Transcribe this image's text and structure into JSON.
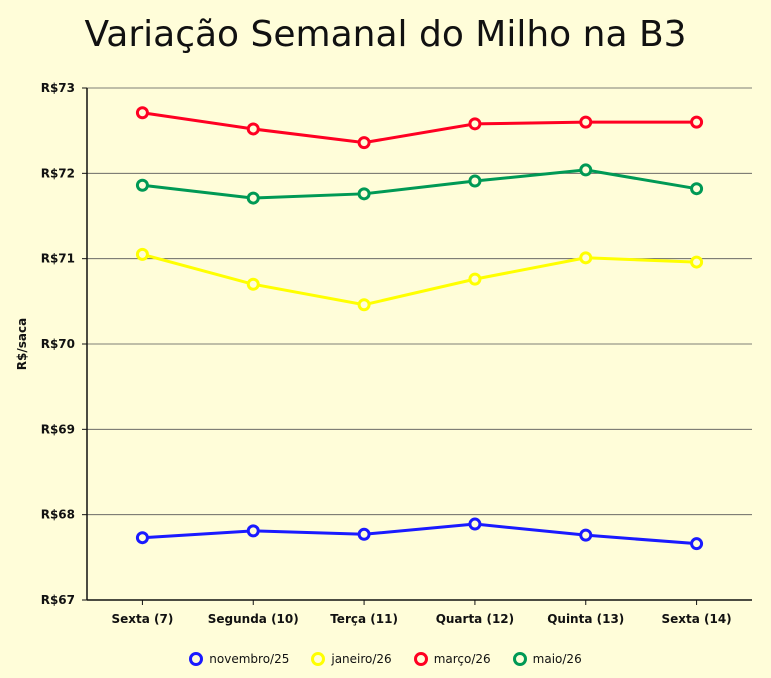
{
  "chart_data": {
    "type": "line",
    "title": "Variação Semanal do Milho na B3",
    "xlabel": "",
    "ylabel": "R$/saca",
    "ylim": [
      67,
      73
    ],
    "yticks": [
      "R$67",
      "R$68",
      "R$69",
      "R$70",
      "R$71",
      "R$72",
      "R$73"
    ],
    "categories": [
      "Sexta (7)",
      "Segunda (10)",
      "Terça (11)",
      "Quarta (12)",
      "Quinta (13)",
      "Sexta (14)"
    ],
    "grid": true,
    "legend": "bottom",
    "series": [
      {
        "name": "novembro/25",
        "color": "#1a1aff",
        "values": [
          67.73,
          67.81,
          67.77,
          67.89,
          67.76,
          67.66
        ]
      },
      {
        "name": "janeiro/26",
        "color": "#ffff00",
        "values": [
          71.05,
          70.7,
          70.46,
          70.76,
          71.01,
          70.96
        ]
      },
      {
        "name": "março/26",
        "color": "#ff0022",
        "values": [
          72.71,
          72.52,
          72.36,
          72.58,
          72.6,
          72.6
        ]
      },
      {
        "name": "maio/26",
        "color": "#009955",
        "values": [
          71.86,
          71.71,
          71.76,
          71.91,
          72.04,
          71.82
        ]
      }
    ]
  }
}
